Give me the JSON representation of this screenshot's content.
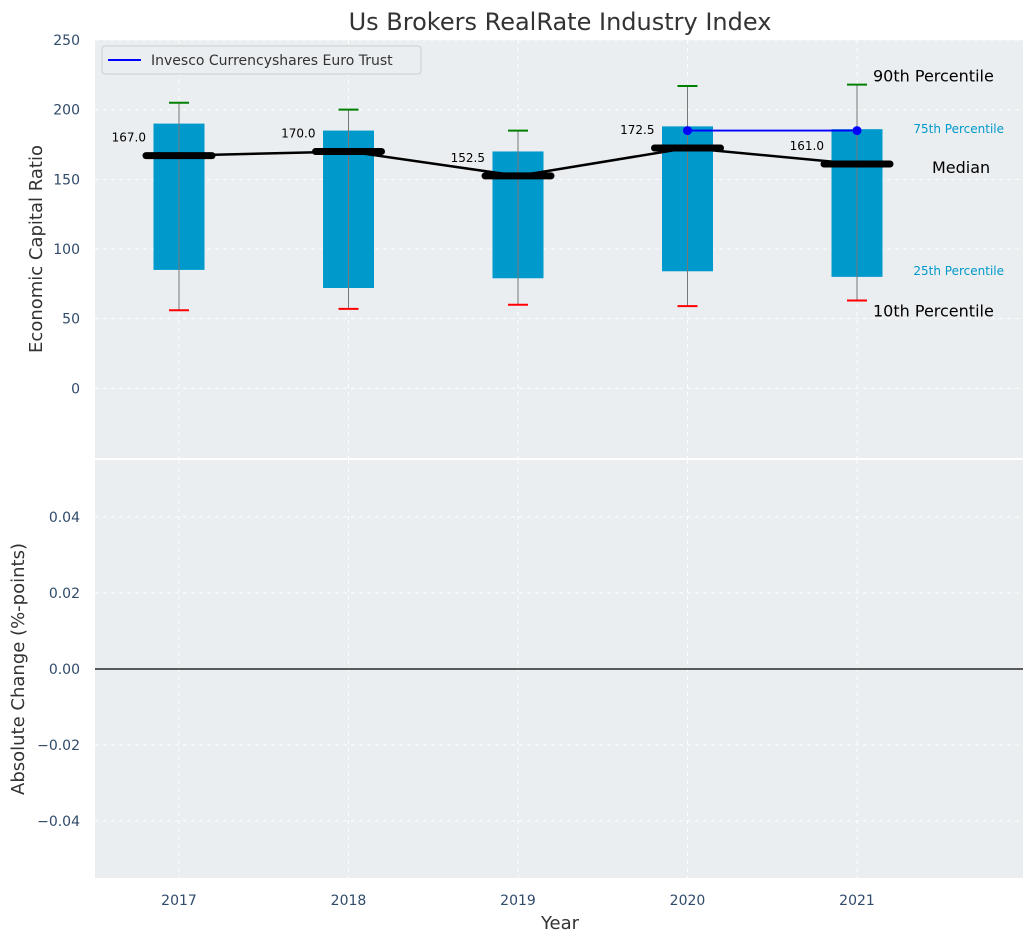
{
  "chart_data": [
    {
      "type": "box",
      "title": "Us Brokers RealRate Industry Index",
      "ylabel": "Economic Capital Ratio",
      "ylim": [
        -50,
        250
      ],
      "yticks": [
        "250",
        "200",
        "150",
        "100",
        "50",
        "0"
      ],
      "grid": true,
      "legend": {
        "placement": "top-left",
        "label": "Invesco Currencyshares Euro Trust"
      },
      "categories": [
        "2017",
        "2018",
        "2019",
        "2020",
        "2021"
      ],
      "p10": [
        56,
        57,
        60,
        59,
        63
      ],
      "p25": [
        85,
        72,
        79,
        84,
        80
      ],
      "median": [
        167.0,
        170.0,
        152.5,
        172.5,
        161.0
      ],
      "median_labels": [
        "167.0",
        "170.0",
        "152.5",
        "172.5",
        "161.0"
      ],
      "p75": [
        190,
        185,
        170,
        188,
        186
      ],
      "p90": [
        205,
        200,
        185,
        217,
        218
      ],
      "company_series": {
        "name": "Invesco Currencyshares Euro Trust",
        "x": [
          "2020",
          "2021"
        ],
        "values": [
          185,
          185
        ]
      },
      "annotations": {
        "p90": "90th Percentile",
        "p75": "75th Percentile",
        "median": "Median",
        "p25": "25th Percentile",
        "p10": "10th Percentile"
      },
      "colors": {
        "box": "#0099cc",
        "whisker_top": "#008000",
        "whisker_bottom": "#ff0000",
        "median_line": "#000000",
        "company": "#0000ff",
        "background": "#eaeef0",
        "title": "#333333",
        "tick": "#2f4a6a"
      }
    },
    {
      "type": "line",
      "ylabel": "Absolute Change (%-points)",
      "xlabel": "Year",
      "ylim": [
        -0.055,
        0.055
      ],
      "yticks": [
        "0.04",
        "0.02",
        "0.00",
        "−0.02",
        "−0.04"
      ],
      "grid": true,
      "zero_line": true,
      "categories": [
        "2017",
        "2018",
        "2019",
        "2020",
        "2021"
      ]
    }
  ]
}
